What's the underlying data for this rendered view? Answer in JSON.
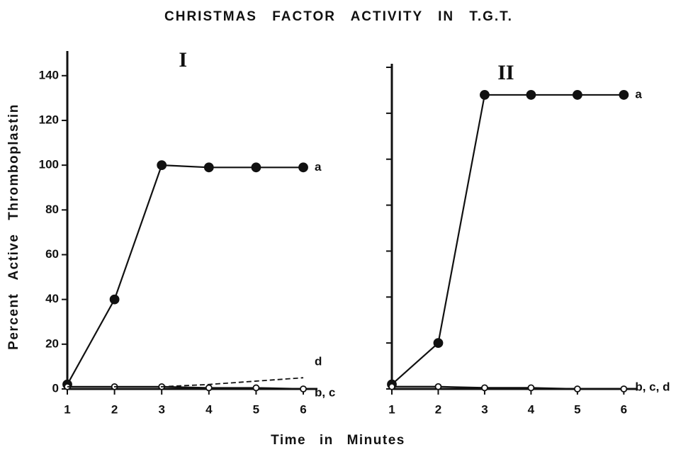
{
  "title": "CHRISTMAS FACTOR ACTIVITY IN T.G.T.",
  "x_label": "Time in Minutes",
  "y_label": "Percent Active Thromboplastin",
  "chart_data": [
    {
      "type": "line",
      "panel": "I",
      "x": [
        1,
        2,
        3,
        4,
        5,
        6
      ],
      "xlim": [
        1,
        6.3
      ],
      "xticks": [
        1,
        2,
        3,
        4,
        5,
        6
      ],
      "ylim": [
        0,
        145
      ],
      "yticks": [
        0,
        20,
        40,
        60,
        80,
        100,
        120,
        140
      ],
      "ytick_labels": true,
      "series": [
        {
          "name": "a",
          "color": "#111111",
          "marker": "filled",
          "dash": false,
          "values": [
            2,
            40,
            100,
            99,
            99,
            99
          ]
        },
        {
          "name": "b, c",
          "color": "#111111",
          "marker": "open",
          "dash": false,
          "values": [
            1,
            1,
            1,
            0.5,
            0.5,
            0
          ]
        },
        {
          "name": "d",
          "color": "#111111",
          "marker": "none",
          "dash": true,
          "values": [
            1,
            1,
            1,
            2,
            3.5,
            5
          ]
        }
      ]
    },
    {
      "type": "line",
      "panel": "II",
      "x": [
        1,
        2,
        3,
        4,
        5,
        6
      ],
      "xlim": [
        1,
        6.3
      ],
      "xticks": [
        1,
        2,
        3,
        4,
        5,
        6
      ],
      "ylim": [
        0,
        140
      ],
      "yticks": [
        0,
        20,
        40,
        60,
        80,
        100,
        120,
        140
      ],
      "ytick_labels": false,
      "series": [
        {
          "name": "a",
          "color": "#111111",
          "marker": "filled",
          "dash": false,
          "values": [
            2,
            20,
            128,
            128,
            128,
            128
          ]
        },
        {
          "name": "b, c, d",
          "color": "#111111",
          "marker": "open",
          "dash": false,
          "values": [
            1,
            1,
            0.5,
            0.5,
            0,
            0
          ]
        }
      ]
    }
  ]
}
